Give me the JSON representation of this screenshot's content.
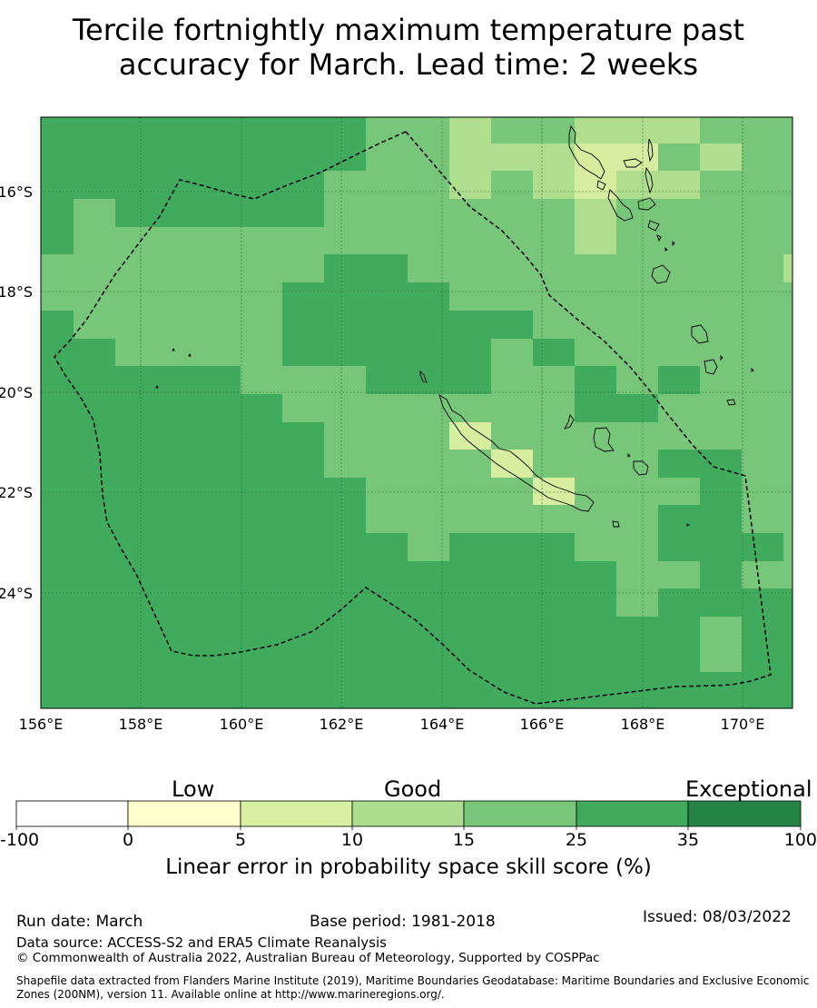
{
  "title": {
    "line1": "Tercile fortnightly maximum temperature past",
    "line2": "accuracy for March. Lead time: 2 weeks"
  },
  "map": {
    "lon_ticks": [
      "156°E",
      "158°E",
      "160°E",
      "162°E",
      "164°E",
      "166°E",
      "168°E",
      "170°E"
    ],
    "lat_ticks": [
      "16°S",
      "18°S",
      "20°S",
      "22°S",
      "24°S"
    ],
    "colors": {
      "c1": "#d7eda0",
      "c2": "#b0de8f",
      "c3": "#78c679",
      "c4": "#41ab5d",
      "coast": "#000000",
      "boundary": "#000000",
      "grid": "#2e6b35"
    }
  },
  "colorbar": {
    "categories": [
      "Low",
      "Good",
      "Exceptional"
    ],
    "boundaries": [
      "-100",
      "0",
      "5",
      "10",
      "15",
      "25",
      "35",
      "100"
    ],
    "colors": [
      "#ffffff",
      "#ffffcc",
      "#d9f0a3",
      "#addd8e",
      "#78c679",
      "#41ab5d",
      "#238443"
    ],
    "title": "Linear error in probability space skill score (%)"
  },
  "footer": {
    "run_date": "Run date: March",
    "base_period": "Base period: 1981-2018",
    "issued": "Issued: 08/03/2022",
    "data_source": "Data source: ACCESS-S2 and ERA5 Climate Reanalysis",
    "copyright": "© Commonwealth of Australia 2022, Australian Bureau of Meteorology, Supported by COSPPac",
    "shapefile_line1": "Shapefile data extracted from Flanders Marine Institute (2019), Maritime Boundaries Geodatabase: Maritime Boundaries and Exclusive Economic",
    "shapefile_line2": "Zones (200NM), version 11. Available online at http://www.marineregions.org/."
  }
}
